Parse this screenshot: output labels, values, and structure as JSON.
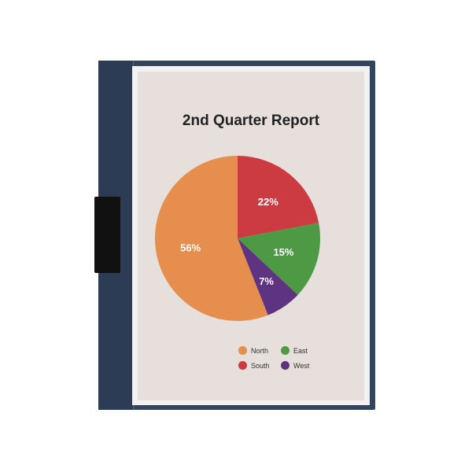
{
  "chart_data": {
    "type": "pie",
    "title": "2nd Quarter Report",
    "categories": [
      "South",
      "East",
      "West",
      "North"
    ],
    "values": [
      22,
      15,
      7,
      56
    ],
    "labels": [
      "22%",
      "15%",
      "7%",
      "56%"
    ],
    "colors": [
      "#cc3a42",
      "#4e9a44",
      "#5e3380",
      "#e68e4e"
    ],
    "legend": {
      "placement": "bottom",
      "entries": [
        "North",
        "East",
        "South",
        "West"
      ],
      "colors": [
        "#e68e4e",
        "#4e9a44",
        "#cc3a42",
        "#5e3380"
      ]
    }
  }
}
